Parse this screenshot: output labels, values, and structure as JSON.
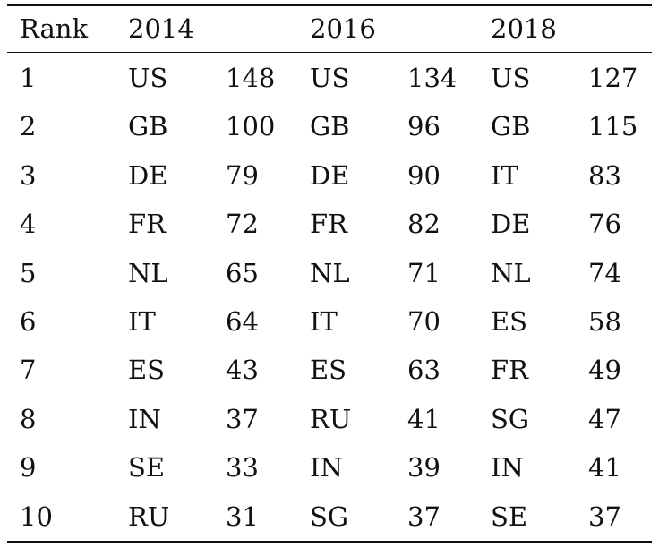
{
  "table": {
    "headers": [
      "Rank",
      "2014",
      "",
      "2016",
      "",
      "2018",
      ""
    ],
    "rows": [
      [
        "1",
        "US",
        "148",
        "US",
        "134",
        "US",
        "127"
      ],
      [
        "2",
        "GB",
        "100",
        "GB",
        "96",
        "GB",
        "115"
      ],
      [
        "3",
        "DE",
        "79",
        "DE",
        "90",
        "IT",
        "83"
      ],
      [
        "4",
        "FR",
        "72",
        "FR",
        "82",
        "DE",
        "76"
      ],
      [
        "5",
        "NL",
        "65",
        "NL",
        "71",
        "NL",
        "74"
      ],
      [
        "6",
        "IT",
        "64",
        "IT",
        "70",
        "ES",
        "58"
      ],
      [
        "7",
        "ES",
        "43",
        "ES",
        "63",
        "FR",
        "49"
      ],
      [
        "8",
        "IN",
        "37",
        "RU",
        "41",
        "SG",
        "47"
      ],
      [
        "9",
        "SE",
        "33",
        "IN",
        "39",
        "IN",
        "41"
      ],
      [
        "10",
        "RU",
        "31",
        "SG",
        "37",
        "SE",
        "37"
      ]
    ]
  }
}
